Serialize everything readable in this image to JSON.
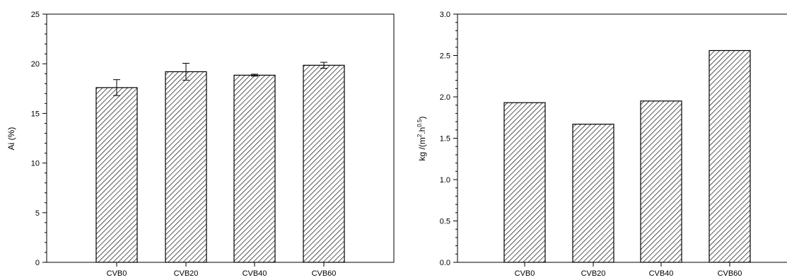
{
  "chart_data": [
    {
      "type": "bar",
      "categories": [
        "CVB0",
        "CVB20",
        "CVB40",
        "CVB60"
      ],
      "values": [
        17.6,
        19.2,
        18.85,
        19.85
      ],
      "errors": [
        0.8,
        0.85,
        0.1,
        0.3
      ],
      "ylabel": "Ai (%)",
      "xlabel": "",
      "ylim": [
        0,
        25
      ],
      "yticks": [
        "0",
        "5",
        "10",
        "15",
        "20",
        "25"
      ],
      "grid": false,
      "bar_pattern": "diagonal-hatch",
      "bar_fill": "#ffffff",
      "bar_stroke": "#000000"
    },
    {
      "type": "bar",
      "categories": [
        "CVB0",
        "CVB20",
        "CVB40",
        "CVB60"
      ],
      "values": [
        1.93,
        1.67,
        1.95,
        2.56
      ],
      "ylabel_parts": [
        "kg /(m",
        "2",
        ".h",
        "0.5",
        ")"
      ],
      "xlabel": "",
      "ylim": [
        0,
        3
      ],
      "yticks": [
        "0.0",
        "0.5",
        "1.0",
        "1.5",
        "2.0",
        "2.5",
        "3.0"
      ],
      "grid": false,
      "bar_pattern": "diagonal-hatch",
      "bar_fill": "#ffffff",
      "bar_stroke": "#000000"
    }
  ]
}
